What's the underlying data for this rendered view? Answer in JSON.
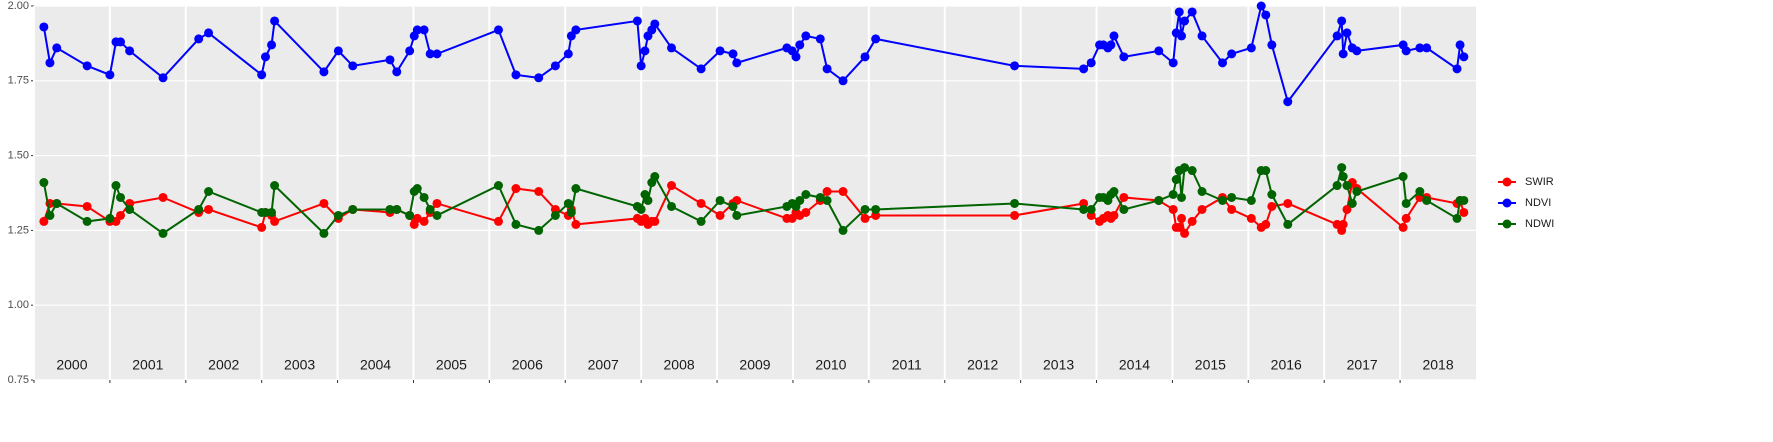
{
  "chart_data": {
    "type": "line",
    "x": [
      2000.13,
      2000.21,
      2000.3,
      2000.7,
      2001.0,
      2001.08,
      2001.14,
      2001.26,
      2001.7,
      2002.17,
      2002.3,
      2003.0,
      2003.05,
      2003.13,
      2003.17,
      2003.82,
      2004.01,
      2004.2,
      2004.69,
      2004.78,
      2004.95,
      2005.01,
      2005.05,
      2005.14,
      2005.22,
      2005.31,
      2006.12,
      2006.35,
      2006.65,
      2006.87,
      2007.04,
      2007.08,
      2007.14,
      2007.95,
      2008.0,
      2008.05,
      2008.09,
      2008.14,
      2008.18,
      2008.4,
      2008.79,
      2009.04,
      2009.21,
      2009.26,
      2009.92,
      2009.99,
      2010.04,
      2010.09,
      2010.17,
      2010.36,
      2010.45,
      2010.66,
      2010.95,
      2011.09,
      2012.92,
      2013.83,
      2013.93,
      2014.04,
      2014.09,
      2014.15,
      2014.19,
      2014.23,
      2014.36,
      2014.82,
      2015.01,
      2015.05,
      2015.09,
      2015.12,
      2015.16,
      2015.26,
      2015.39,
      2015.66,
      2015.78,
      2016.04,
      2016.17,
      2016.23,
      2016.31,
      2016.52,
      2017.17,
      2017.23,
      2017.25,
      2017.3,
      2017.37,
      2017.43,
      2018.04,
      2018.08,
      2018.26,
      2018.35,
      2018.75,
      2018.79,
      2018.84
    ],
    "series": [
      {
        "name": "SWIR",
        "color": "#ff0000",
        "values": [
          1.28,
          1.34,
          1.34,
          1.33,
          1.28,
          1.28,
          1.3,
          1.34,
          1.36,
          1.31,
          1.32,
          1.26,
          1.31,
          1.3,
          1.28,
          1.34,
          1.29,
          1.32,
          1.31,
          1.32,
          1.3,
          1.27,
          1.29,
          1.28,
          1.31,
          1.34,
          1.28,
          1.39,
          1.38,
          1.32,
          1.3,
          1.32,
          1.27,
          1.29,
          1.28,
          1.29,
          1.27,
          1.28,
          1.28,
          1.4,
          1.34,
          1.3,
          1.34,
          1.35,
          1.29,
          1.29,
          1.31,
          1.3,
          1.31,
          1.35,
          1.38,
          1.38,
          1.29,
          1.3,
          1.3,
          1.34,
          1.3,
          1.28,
          1.29,
          1.3,
          1.29,
          1.3,
          1.36,
          1.35,
          1.32,
          1.26,
          1.26,
          1.29,
          1.24,
          1.28,
          1.32,
          1.36,
          1.32,
          1.29,
          1.26,
          1.27,
          1.33,
          1.34,
          1.27,
          1.25,
          1.27,
          1.32,
          1.41,
          1.39,
          1.26,
          1.29,
          1.36,
          1.36,
          1.34,
          1.35,
          1.31
        ]
      },
      {
        "name": "NDVI",
        "color": "#0000ff",
        "values": [
          1.93,
          1.81,
          1.86,
          1.8,
          1.77,
          1.88,
          1.88,
          1.85,
          1.76,
          1.89,
          1.91,
          1.77,
          1.83,
          1.87,
          1.95,
          1.78,
          1.85,
          1.8,
          1.82,
          1.78,
          1.85,
          1.9,
          1.92,
          1.92,
          1.84,
          1.84,
          1.92,
          1.77,
          1.76,
          1.8,
          1.84,
          1.9,
          1.92,
          1.95,
          1.8,
          1.85,
          1.9,
          1.92,
          1.94,
          1.86,
          1.79,
          1.85,
          1.84,
          1.81,
          1.86,
          1.85,
          1.83,
          1.87,
          1.9,
          1.89,
          1.79,
          1.75,
          1.83,
          1.89,
          1.8,
          1.79,
          1.81,
          1.87,
          1.87,
          1.86,
          1.87,
          1.9,
          1.83,
          1.85,
          1.81,
          1.91,
          1.98,
          1.9,
          1.95,
          1.98,
          1.9,
          1.81,
          1.84,
          1.86,
          2.0,
          1.97,
          1.87,
          1.68,
          1.9,
          1.95,
          1.84,
          1.91,
          1.86,
          1.85,
          1.87,
          1.85,
          1.86,
          1.86,
          1.79,
          1.87,
          1.83
        ]
      },
      {
        "name": "NDWI",
        "color": "#006400",
        "values": [
          1.41,
          1.3,
          1.34,
          1.28,
          1.29,
          1.4,
          1.36,
          1.32,
          1.24,
          1.32,
          1.38,
          1.31,
          1.31,
          1.31,
          1.4,
          1.24,
          1.3,
          1.32,
          1.32,
          1.32,
          1.3,
          1.38,
          1.39,
          1.36,
          1.32,
          1.3,
          1.4,
          1.27,
          1.25,
          1.3,
          1.34,
          1.31,
          1.39,
          1.33,
          1.32,
          1.37,
          1.35,
          1.41,
          1.43,
          1.33,
          1.28,
          1.35,
          1.33,
          1.3,
          1.33,
          1.34,
          1.33,
          1.35,
          1.37,
          1.36,
          1.35,
          1.25,
          1.32,
          1.32,
          1.34,
          1.32,
          1.32,
          1.36,
          1.36,
          1.35,
          1.37,
          1.38,
          1.32,
          1.35,
          1.37,
          1.42,
          1.45,
          1.36,
          1.46,
          1.45,
          1.38,
          1.35,
          1.36,
          1.35,
          1.45,
          1.45,
          1.37,
          1.27,
          1.4,
          1.46,
          1.43,
          1.4,
          1.34,
          1.38,
          1.43,
          1.34,
          1.38,
          1.35,
          1.29,
          1.35,
          1.35
        ]
      }
    ],
    "xlim": [
      2000,
      2019
    ],
    "xticks": [
      {
        "value": 2000,
        "label": "2000"
      },
      {
        "value": 2001,
        "label": "2001"
      },
      {
        "value": 2002,
        "label": "2002"
      },
      {
        "value": 2003,
        "label": "2003"
      },
      {
        "value": 2004,
        "label": "2004"
      },
      {
        "value": 2005,
        "label": "2005"
      },
      {
        "value": 2006,
        "label": "2006"
      },
      {
        "value": 2007,
        "label": "2007"
      },
      {
        "value": 2008,
        "label": "2008"
      },
      {
        "value": 2009,
        "label": "2009"
      },
      {
        "value": 2010,
        "label": "2010"
      },
      {
        "value": 2011,
        "label": "2011"
      },
      {
        "value": 2012,
        "label": "2012"
      },
      {
        "value": 2013,
        "label": "2013"
      },
      {
        "value": 2014,
        "label": "2014"
      },
      {
        "value": 2015,
        "label": "2015"
      },
      {
        "value": 2016,
        "label": "2016"
      },
      {
        "value": 2017,
        "label": "2017"
      },
      {
        "value": 2018,
        "label": "2018"
      }
    ],
    "ylim": [
      0.75,
      2.0
    ],
    "yticks": [
      {
        "value": 0.75,
        "label": "0.75"
      },
      {
        "value": 1.0,
        "label": "1.00"
      },
      {
        "value": 1.25,
        "label": "1.25"
      },
      {
        "value": 1.5,
        "label": "1.50"
      },
      {
        "value": 1.75,
        "label": "1.75"
      },
      {
        "value": 2.0,
        "label": "2.00"
      }
    ],
    "grid": true,
    "legend": "right"
  }
}
